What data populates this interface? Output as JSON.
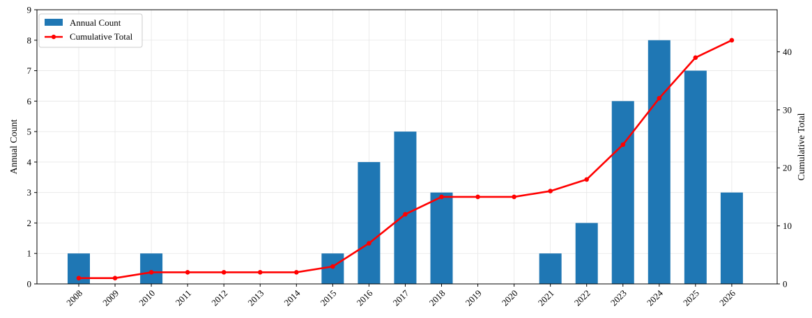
{
  "chart_data": {
    "type": "bar",
    "categories": [
      "2008",
      "2009",
      "2010",
      "2011",
      "2012",
      "2013",
      "2014",
      "2015",
      "2016",
      "2017",
      "2018",
      "2019",
      "2020",
      "2021",
      "2022",
      "2023",
      "2024",
      "2025",
      "2026"
    ],
    "series": [
      {
        "name": "Annual Count",
        "type": "bar",
        "axis": "left",
        "color": "#1f77b4",
        "values": [
          1,
          0,
          1,
          0,
          0,
          0,
          0,
          1,
          4,
          5,
          3,
          0,
          0,
          1,
          2,
          6,
          8,
          7,
          3
        ]
      },
      {
        "name": "Cumulative Total",
        "type": "line",
        "axis": "right",
        "color": "#ff0000",
        "marker": "circle",
        "values": [
          1,
          1,
          2,
          2,
          2,
          2,
          2,
          3,
          7,
          12,
          15,
          15,
          15,
          16,
          18,
          24,
          32,
          39,
          42
        ]
      }
    ],
    "xlabel": "",
    "ylabel": "Annual Count",
    "y2label": "Cumulative Total",
    "ylim": [
      0,
      9
    ],
    "y2lim": [
      0,
      47.25
    ],
    "yticks": [
      "0",
      "1",
      "2",
      "3",
      "4",
      "5",
      "6",
      "7",
      "8",
      "9"
    ],
    "y2ticks": [
      "0",
      "10",
      "20",
      "30",
      "40"
    ],
    "x_tick_rotation": 45,
    "grid": true,
    "legend": "top-left"
  }
}
